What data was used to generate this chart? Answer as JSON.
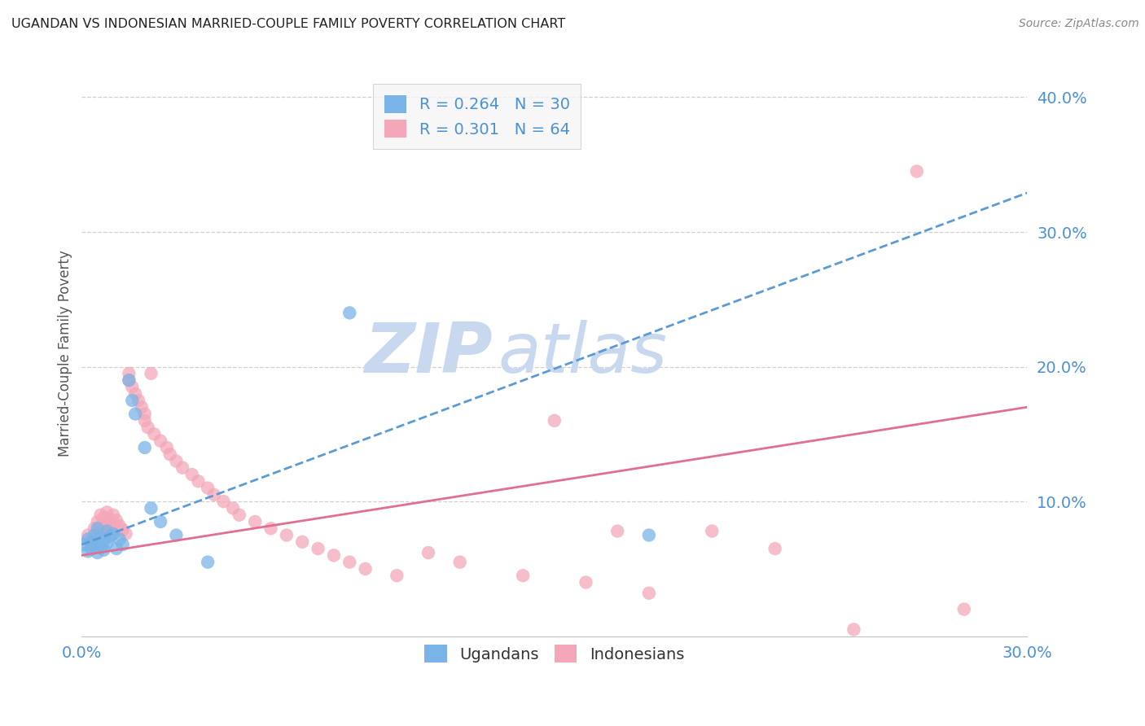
{
  "title": "UGANDAN VS INDONESIAN MARRIED-COUPLE FAMILY POVERTY CORRELATION CHART",
  "source": "Source: ZipAtlas.com",
  "ylabel": "Married-Couple Family Poverty",
  "xlim": [
    0.0,
    0.3
  ],
  "ylim": [
    0.0,
    0.42
  ],
  "ugandan_color": "#7ab3e8",
  "indonesian_color": "#f4a7b9",
  "ugandan_line_color": "#5b9bd5",
  "indonesian_line_color": "#e07090",
  "ugandan_R": 0.264,
  "ugandan_N": 30,
  "indonesian_R": 0.301,
  "indonesian_N": 64,
  "ugandan_x": [
    0.001,
    0.002,
    0.002,
    0.003,
    0.003,
    0.004,
    0.004,
    0.005,
    0.005,
    0.006,
    0.006,
    0.007,
    0.007,
    0.008,
    0.008,
    0.009,
    0.01,
    0.011,
    0.012,
    0.013,
    0.015,
    0.016,
    0.017,
    0.02,
    0.022,
    0.025,
    0.03,
    0.04,
    0.085,
    0.18
  ],
  "ugandan_y": [
    0.068,
    0.063,
    0.072,
    0.07,
    0.065,
    0.075,
    0.068,
    0.08,
    0.062,
    0.073,
    0.066,
    0.071,
    0.064,
    0.078,
    0.069,
    0.074,
    0.076,
    0.065,
    0.072,
    0.068,
    0.19,
    0.175,
    0.165,
    0.14,
    0.095,
    0.085,
    0.075,
    0.055,
    0.24,
    0.075
  ],
  "indonesian_x": [
    0.002,
    0.003,
    0.004,
    0.004,
    0.005,
    0.005,
    0.006,
    0.006,
    0.007,
    0.007,
    0.008,
    0.008,
    0.009,
    0.009,
    0.01,
    0.01,
    0.011,
    0.012,
    0.013,
    0.014,
    0.015,
    0.015,
    0.016,
    0.017,
    0.018,
    0.019,
    0.02,
    0.02,
    0.021,
    0.022,
    0.023,
    0.025,
    0.027,
    0.028,
    0.03,
    0.032,
    0.035,
    0.037,
    0.04,
    0.042,
    0.045,
    0.048,
    0.05,
    0.055,
    0.06,
    0.065,
    0.07,
    0.075,
    0.08,
    0.085,
    0.09,
    0.1,
    0.11,
    0.12,
    0.14,
    0.15,
    0.16,
    0.17,
    0.18,
    0.2,
    0.22,
    0.245,
    0.265,
    0.28
  ],
  "indonesian_y": [
    0.075,
    0.068,
    0.08,
    0.072,
    0.085,
    0.076,
    0.09,
    0.082,
    0.088,
    0.078,
    0.092,
    0.083,
    0.087,
    0.079,
    0.09,
    0.083,
    0.086,
    0.082,
    0.079,
    0.076,
    0.195,
    0.19,
    0.185,
    0.18,
    0.175,
    0.17,
    0.165,
    0.16,
    0.155,
    0.195,
    0.15,
    0.145,
    0.14,
    0.135,
    0.13,
    0.125,
    0.12,
    0.115,
    0.11,
    0.105,
    0.1,
    0.095,
    0.09,
    0.085,
    0.08,
    0.075,
    0.07,
    0.065,
    0.06,
    0.055,
    0.05,
    0.045,
    0.062,
    0.055,
    0.045,
    0.16,
    0.04,
    0.078,
    0.032,
    0.078,
    0.065,
    0.005,
    0.345,
    0.02
  ],
  "background_color": "#ffffff",
  "title_color": "#222222",
  "axis_label_color": "#555555",
  "tick_color": "#4a90d9",
  "legend_text_color": "#4a90d9",
  "watermark_zip": "ZIP",
  "watermark_atlas": "atlas",
  "watermark_color": "#c8d8ee"
}
